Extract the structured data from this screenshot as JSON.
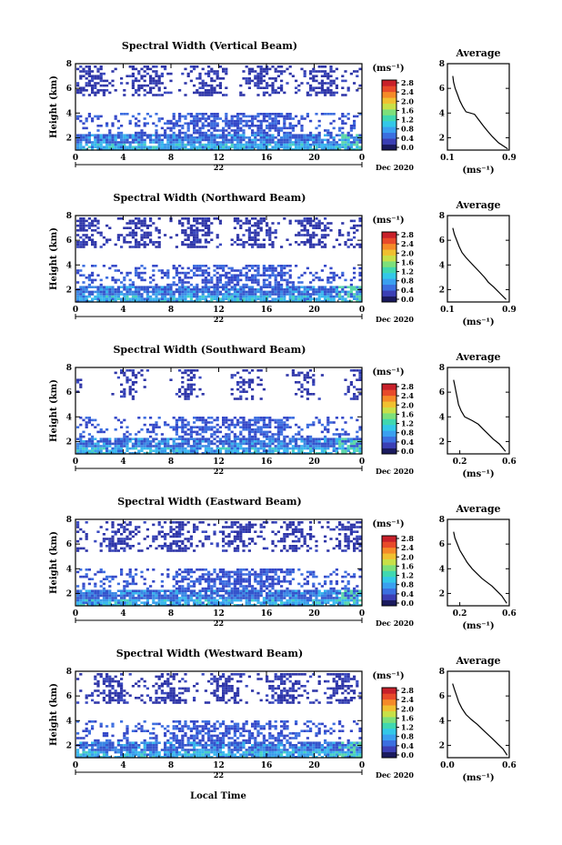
{
  "figure": {
    "xlabel": "Local Time",
    "date_label": "Dec 2020",
    "day_label": "22",
    "ylabel": "Height (km)",
    "colorbar_unit": "(ms⁻¹)",
    "average_title": "Average",
    "average_unit": "(ms⁻¹)"
  },
  "colorbar": {
    "ticks": [
      "0.0",
      "0.4",
      "0.8",
      "1.2",
      "1.6",
      "2.0",
      "2.4",
      "2.8"
    ],
    "colors": [
      "#1a1a5e",
      "#3b3fb5",
      "#3b6fe0",
      "#3aa0f0",
      "#33c8e8",
      "#40d8b0",
      "#7de07a",
      "#c8e048",
      "#f0c030",
      "#f58a28",
      "#e84a2a",
      "#c8202a"
    ]
  },
  "chart_data": [
    {
      "type": "heatmap",
      "title": "Spectral Width (Vertical Beam)",
      "xlabel": "Local Time",
      "ylabel": "Height (km)",
      "x_ticks": [
        "0",
        "4",
        "8",
        "12",
        "16",
        "20",
        "0"
      ],
      "y_ticks": [
        "2",
        "4",
        "6",
        "8"
      ],
      "xlim": [
        0,
        24
      ],
      "ylim": [
        1,
        8
      ],
      "colorbar": {
        "unit": "(ms⁻¹)",
        "range": [
          0,
          2.8
        ]
      },
      "average": {
        "title": "Average",
        "xlabel": "(ms⁻¹)",
        "x_ticks": [
          "0.1",
          "0.9"
        ],
        "y_ticks": [
          "2",
          "4",
          "6",
          "8"
        ],
        "xlim": [
          0.1,
          0.9
        ],
        "ylim": [
          1,
          8
        ],
        "profile": [
          [
            0.17,
            7.0
          ],
          [
            0.18,
            6.5
          ],
          [
            0.2,
            6.0
          ],
          [
            0.23,
            5.5
          ],
          [
            0.26,
            5.0
          ],
          [
            0.3,
            4.5
          ],
          [
            0.34,
            4.1
          ],
          [
            0.45,
            3.9
          ],
          [
            0.5,
            3.5
          ],
          [
            0.56,
            3.0
          ],
          [
            0.61,
            2.6
          ],
          [
            0.68,
            2.1
          ],
          [
            0.76,
            1.6
          ],
          [
            0.88,
            1.1
          ]
        ]
      }
    },
    {
      "type": "heatmap",
      "title": "Spectral Width (Northward Beam)",
      "xlabel": "Local Time",
      "ylabel": "Height (km)",
      "x_ticks": [
        "0",
        "4",
        "8",
        "12",
        "16",
        "20",
        "0"
      ],
      "y_ticks": [
        "2",
        "4",
        "6",
        "8"
      ],
      "xlim": [
        0,
        24
      ],
      "ylim": [
        1,
        8
      ],
      "colorbar": {
        "unit": "(ms⁻¹)",
        "range": [
          0,
          2.8
        ]
      },
      "average": {
        "title": "Average",
        "xlabel": "(ms⁻¹)",
        "x_ticks": [
          "0.1",
          "0.9"
        ],
        "y_ticks": [
          "2",
          "4",
          "6",
          "8"
        ],
        "xlim": [
          0.1,
          0.9
        ],
        "ylim": [
          1,
          8
        ],
        "profile": [
          [
            0.17,
            7.0
          ],
          [
            0.19,
            6.5
          ],
          [
            0.22,
            6.0
          ],
          [
            0.25,
            5.5
          ],
          [
            0.29,
            5.0
          ],
          [
            0.34,
            4.6
          ],
          [
            0.4,
            4.2
          ],
          [
            0.46,
            3.8
          ],
          [
            0.52,
            3.4
          ],
          [
            0.58,
            3.0
          ],
          [
            0.63,
            2.6
          ],
          [
            0.7,
            2.2
          ],
          [
            0.78,
            1.7
          ],
          [
            0.86,
            1.2
          ]
        ]
      }
    },
    {
      "type": "heatmap",
      "title": "Spectral Width (Southward Beam)",
      "xlabel": "Local Time",
      "ylabel": "Height (km)",
      "x_ticks": [
        "0",
        "4",
        "8",
        "12",
        "16",
        "20",
        "0"
      ],
      "y_ticks": [
        "2",
        "4",
        "6",
        "8"
      ],
      "xlim": [
        0,
        24
      ],
      "ylim": [
        1,
        8
      ],
      "colorbar": {
        "unit": "(ms⁻¹)",
        "range": [
          0,
          2.8
        ]
      },
      "average": {
        "title": "Average",
        "xlabel": "(ms⁻¹)",
        "x_ticks": [
          "0.2",
          "0.6"
        ],
        "y_ticks": [
          "2",
          "4",
          "6",
          "8"
        ],
        "xlim": [
          0.1,
          0.6
        ],
        "ylim": [
          1,
          8
        ],
        "profile": [
          [
            0.15,
            7.0
          ],
          [
            0.16,
            6.5
          ],
          [
            0.17,
            6.0
          ],
          [
            0.18,
            5.5
          ],
          [
            0.19,
            5.0
          ],
          [
            0.21,
            4.5
          ],
          [
            0.24,
            4.0
          ],
          [
            0.3,
            3.7
          ],
          [
            0.35,
            3.4
          ],
          [
            0.39,
            3.0
          ],
          [
            0.43,
            2.6
          ],
          [
            0.47,
            2.2
          ],
          [
            0.52,
            1.8
          ],
          [
            0.57,
            1.2
          ]
        ]
      }
    },
    {
      "type": "heatmap",
      "title": "Spectral Width (Eastward Beam)",
      "xlabel": "Local Time",
      "ylabel": "Height (km)",
      "x_ticks": [
        "0",
        "4",
        "8",
        "12",
        "16",
        "20",
        "0"
      ],
      "y_ticks": [
        "2",
        "4",
        "6",
        "8"
      ],
      "xlim": [
        0,
        24
      ],
      "ylim": [
        1,
        8
      ],
      "colorbar": {
        "unit": "(ms⁻¹)",
        "range": [
          0,
          2.8
        ]
      },
      "average": {
        "title": "Average",
        "xlabel": "(ms⁻¹)",
        "x_ticks": [
          "0.2",
          "0.6"
        ],
        "y_ticks": [
          "2",
          "4",
          "6",
          "8"
        ],
        "xlim": [
          0.1,
          0.6
        ],
        "ylim": [
          1,
          8
        ],
        "profile": [
          [
            0.15,
            7.0
          ],
          [
            0.16,
            6.5
          ],
          [
            0.18,
            6.0
          ],
          [
            0.2,
            5.5
          ],
          [
            0.23,
            5.0
          ],
          [
            0.26,
            4.5
          ],
          [
            0.3,
            4.0
          ],
          [
            0.34,
            3.6
          ],
          [
            0.38,
            3.2
          ],
          [
            0.42,
            2.9
          ],
          [
            0.46,
            2.6
          ],
          [
            0.5,
            2.2
          ],
          [
            0.54,
            1.8
          ],
          [
            0.58,
            1.2
          ]
        ]
      }
    },
    {
      "type": "heatmap",
      "title": "Spectral Width (Westward Beam)",
      "xlabel": "Local Time",
      "ylabel": "Height (km)",
      "x_ticks": [
        "0",
        "4",
        "8",
        "12",
        "16",
        "20",
        "0"
      ],
      "y_ticks": [
        "2",
        "4",
        "6",
        "8"
      ],
      "xlim": [
        0,
        24
      ],
      "ylim": [
        1,
        8
      ],
      "colorbar": {
        "unit": "(ms⁻¹)",
        "range": [
          0,
          2.8
        ]
      },
      "average": {
        "title": "Average",
        "xlabel": "(ms⁻¹)",
        "x_ticks": [
          "0.0",
          "0.6"
        ],
        "y_ticks": [
          "2",
          "4",
          "6",
          "8"
        ],
        "xlim": [
          0.0,
          0.6
        ],
        "ylim": [
          1,
          8
        ],
        "profile": [
          [
            0.05,
            7.0
          ],
          [
            0.07,
            6.5
          ],
          [
            0.09,
            6.0
          ],
          [
            0.11,
            5.5
          ],
          [
            0.14,
            5.0
          ],
          [
            0.18,
            4.5
          ],
          [
            0.23,
            4.1
          ],
          [
            0.29,
            3.7
          ],
          [
            0.34,
            3.3
          ],
          [
            0.39,
            2.9
          ],
          [
            0.44,
            2.5
          ],
          [
            0.49,
            2.1
          ],
          [
            0.54,
            1.7
          ],
          [
            0.58,
            1.2
          ]
        ]
      }
    }
  ]
}
